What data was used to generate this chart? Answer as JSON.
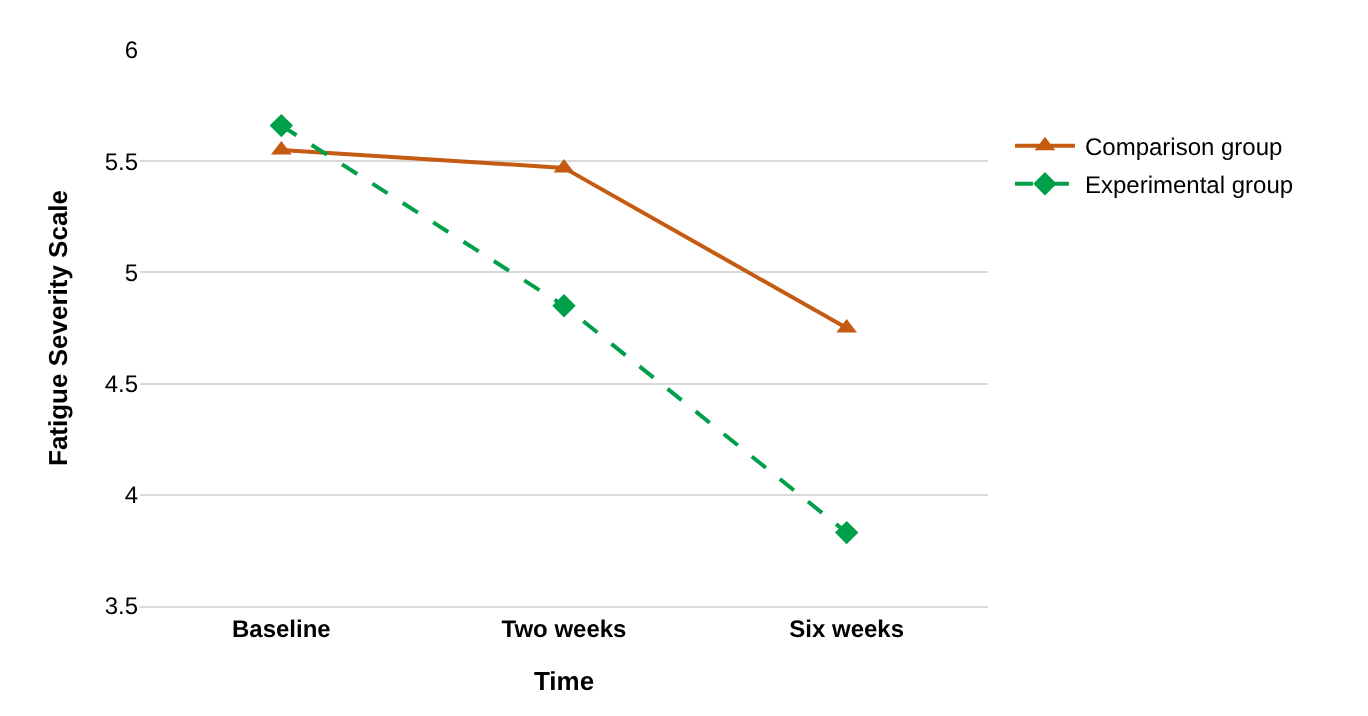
{
  "chart_data": {
    "type": "line",
    "xlabel": "Time",
    "ylabel": "Fatigue Severity Scale",
    "categories": [
      "Baseline",
      "Two weeks",
      "Six weeks"
    ],
    "series": [
      {
        "name": "Comparison group",
        "color": "#c55a11",
        "values": [
          5.55,
          5.47,
          4.75
        ],
        "marker": "triangle",
        "line_style": "solid"
      },
      {
        "name": "Experimental group",
        "color": "#00a04b",
        "values": [
          5.66,
          4.85,
          3.83
        ],
        "marker": "diamond",
        "line_style": "dashed"
      }
    ],
    "ylim": [
      3.5,
      6
    ],
    "yticks": [
      3.5,
      4,
      4.5,
      5,
      5.5,
      6
    ],
    "grid": "y",
    "legend": "right"
  }
}
